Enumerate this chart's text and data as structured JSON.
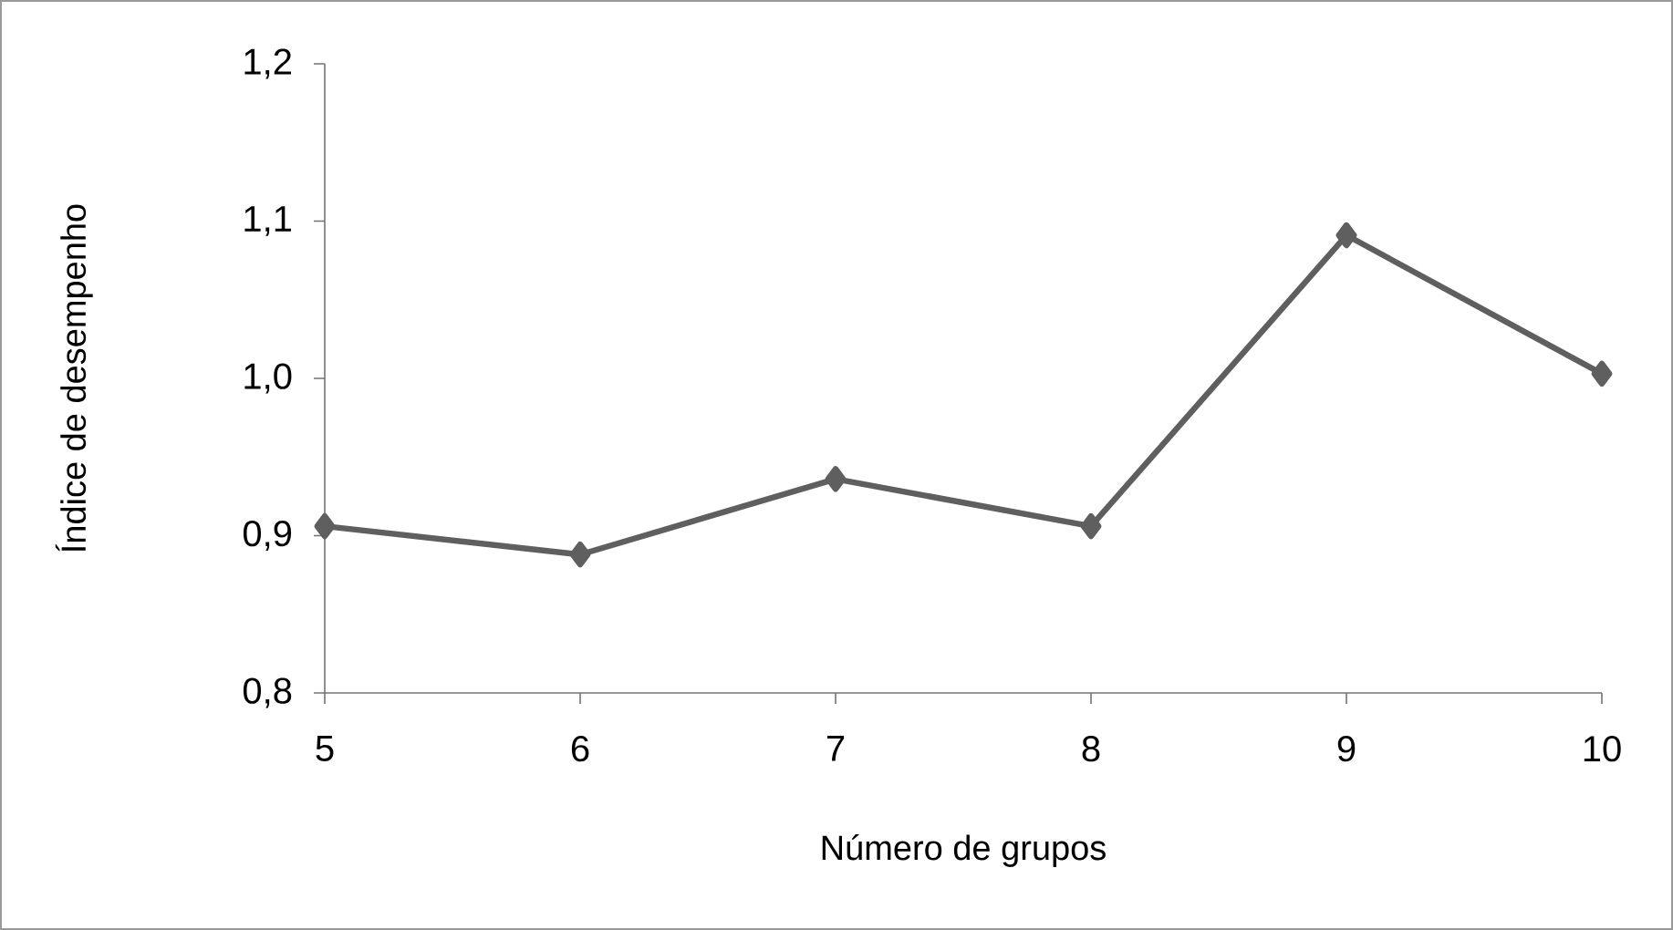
{
  "chart_data": {
    "type": "line",
    "xlabel": "Número de grupos",
    "ylabel": "Índice de desempenho",
    "x": [
      5,
      6,
      7,
      8,
      9,
      10
    ],
    "series": [
      {
        "color": "#5f5f5f",
        "values": [
          0.906,
          0.888,
          0.936,
          0.906,
          1.091,
          1.003
        ]
      }
    ],
    "xlim": [
      5,
      10
    ],
    "xticks": [
      5,
      6,
      7,
      8,
      9,
      10
    ],
    "ylim": [
      0.8,
      1.2
    ],
    "yticks": [
      {
        "value": 0.8,
        "label": "0,8"
      },
      {
        "value": 0.9,
        "label": "0,9"
      },
      {
        "value": 1.0,
        "label": "1,0"
      },
      {
        "value": 1.1,
        "label": "1,1"
      },
      {
        "value": 1.2,
        "label": "1,2"
      }
    ],
    "grid": false,
    "marker": "diamond",
    "line_style": "solid"
  }
}
